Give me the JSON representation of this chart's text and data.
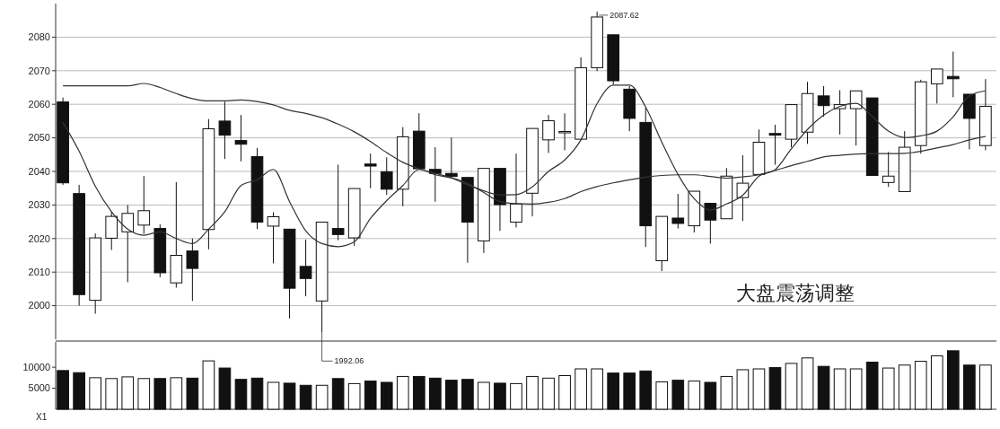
{
  "chart_data": [
    {
      "type": "candlestick",
      "categories": [
        null,
        null,
        null,
        null,
        null,
        null,
        null,
        null,
        null,
        null,
        null,
        null,
        null,
        null,
        null,
        null,
        null,
        null,
        null,
        null,
        null,
        null,
        null,
        null,
        null,
        null,
        null,
        null,
        null,
        null,
        null,
        null,
        null,
        null,
        null,
        null,
        null,
        null,
        null,
        null,
        null,
        null,
        null,
        null,
        null,
        null,
        null,
        null,
        null,
        null,
        null,
        null,
        null,
        null,
        null,
        null,
        null,
        null
      ],
      "ohlc": [
        [
          2060.7,
          2062,
          2036,
          2036.6
        ],
        [
          2033.4,
          2036,
          2000,
          2003.3
        ],
        [
          2001.6,
          2021.5,
          1997.6,
          2020.2
        ],
        [
          2020.1,
          2028,
          2016.6,
          2026.6
        ],
        [
          2022,
          2030,
          2007,
          2027.5
        ],
        [
          2024,
          2038.6,
          2021.4,
          2028.3
        ],
        [
          2023,
          2024.2,
          2008.5,
          2009.8
        ],
        [
          2006.8,
          2036.8,
          2005.4,
          2015
        ],
        [
          2016.3,
          2020,
          2001.4,
          2011.1
        ],
        [
          2022.7,
          2055.6,
          2016.8,
          2052.7
        ],
        [
          2055,
          2060.8,
          2043.7,
          2050.8
        ],
        [
          2049.2,
          2056.8,
          2043,
          2048.1
        ],
        [
          2044.4,
          2047,
          2022.8,
          2024.9
        ],
        [
          2023.7,
          2027.8,
          2012.6,
          2026.5
        ],
        [
          2022.8,
          2022.8,
          1996.2,
          2005.2
        ],
        [
          2011.7,
          2019.7,
          2002.8,
          2008.1
        ],
        [
          2001.4,
          2024.9,
          1992.06,
          2024.9
        ],
        [
          2023,
          2042,
          2019.5,
          2021.2
        ],
        [
          2020.2,
          2034.9,
          2017.8,
          2034.9
        ],
        [
          2042.2,
          2045.3,
          2035,
          2041.6
        ],
        [
          2039.9,
          2044.2,
          2033,
          2034.7
        ],
        [
          2034.7,
          2053.2,
          2029.6,
          2050.3
        ],
        [
          2052,
          2057.3,
          2040.8,
          2040.8
        ],
        [
          2040.6,
          2047.2,
          2031,
          2039.4
        ],
        [
          2039.4,
          2050.1,
          2038.5,
          2038.5
        ],
        [
          2038.2,
          2038.2,
          2012.8,
          2024.9
        ],
        [
          2019.3,
          2040.9,
          2015.7,
          2040.9
        ],
        [
          2040.9,
          2040.9,
          2022.3,
          2030.1
        ],
        [
          2024.9,
          2045.3,
          2023.3,
          2030.3
        ],
        [
          2033.5,
          2052.8,
          2026.6,
          2052.8
        ],
        [
          2049.4,
          2056.8,
          2045.5,
          2055.1
        ],
        [
          2051.7,
          2057.3,
          2046.3,
          2051.9
        ],
        [
          2049.6,
          2074,
          2049.6,
          2070.9
        ],
        [
          2070.9,
          2087.62,
          2069.9,
          2086
        ],
        [
          2080.7,
          2080.7,
          2065.9,
          2067
        ],
        [
          2064.5,
          2065.4,
          2052,
          2055.8
        ],
        [
          2054.6,
          2059,
          2017.5,
          2023.8
        ],
        [
          2013.4,
          2026.6,
          2010.3,
          2026.6
        ],
        [
          2026.1,
          2033.3,
          2023,
          2024.5
        ],
        [
          2023.8,
          2034.1,
          2021.8,
          2034.1
        ],
        [
          2030.5,
          2030.5,
          2018.5,
          2025.5
        ],
        [
          2025.9,
          2041,
          2025.9,
          2038.6
        ],
        [
          2032.2,
          2044.8,
          2025.2,
          2036.5
        ],
        [
          2039.1,
          2052.5,
          2039.1,
          2048.7
        ],
        [
          2051.3,
          2053.9,
          2042,
          2050.8
        ],
        [
          2049.6,
          2059.9,
          2047.2,
          2059.9
        ],
        [
          2051.7,
          2066.7,
          2048.2,
          2063.2
        ],
        [
          2062.5,
          2065.4,
          2056.3,
          2059.6
        ],
        [
          2058.7,
          2064.2,
          2051,
          2059.9
        ],
        [
          2058.7,
          2064,
          2047.7,
          2064
        ],
        [
          2061.9,
          2061.9,
          2038.8,
          2038.8
        ],
        [
          2036.7,
          2045.8,
          2035.4,
          2038.6
        ],
        [
          2034,
          2052,
          2034,
          2047.2
        ],
        [
          2047.7,
          2067.3,
          2045.3,
          2066.7
        ],
        [
          2066.1,
          2070.5,
          2060.2,
          2070.5
        ],
        [
          2068.3,
          2075.7,
          2062.1,
          2067.6
        ],
        [
          2063,
          2063,
          2046.6,
          2055.8
        ],
        [
          2047.7,
          2067.5,
          2046.3,
          2059.4
        ]
      ],
      "series": [
        {
          "type": "line",
          "color": "#333333",
          "values": [
            2054.6,
            2046,
            2035.6,
            2028,
            2022.8,
            2021,
            2022,
            2020,
            2018.5,
            2022.8,
            2028,
            2035.8,
            2037.5,
            2040.6,
            2031,
            2022.3,
            2018.5,
            2017.6,
            2019,
            2026,
            2031.3,
            2035.8,
            2040.6,
            2039,
            2038,
            2036,
            2034.2,
            2033,
            2033.1,
            2035.4,
            2040,
            2043.4,
            2049.4,
            2060.2,
            2065.7,
            2065.7,
            2059.2,
            2048.7,
            2039.1,
            2031.9,
            2028.5,
            2030.3,
            2032.9,
            2038.6,
            2040.5,
            2046.7,
            2052.5,
            2056.8,
            2059.4,
            2060.3,
            2056.3,
            2052,
            2050.1,
            2050.6,
            2052,
            2056.3,
            2062.5,
            2064
          ]
        },
        {
          "type": "line",
          "color": "#333333",
          "values": [
            2065.5,
            2065.5,
            2065.5,
            2065.5,
            2065.5,
            2066.2,
            2065,
            2063.2,
            2061.7,
            2061,
            2061,
            2061.3,
            2060.8,
            2059.8,
            2058.2,
            2057.3,
            2056,
            2054.1,
            2051.8,
            2048.9,
            2045.6,
            2042.7,
            2040.8,
            2039.4,
            2038.2,
            2036.4,
            2033.7,
            2031,
            2030.4,
            2030.3,
            2030.8,
            2031.9,
            2034,
            2035.5,
            2036.6,
            2037.5,
            2038.3,
            2038.8,
            2039,
            2039,
            2038.5,
            2038,
            2038.4,
            2039,
            2040.3,
            2041.7,
            2043,
            2044.3,
            2044.8,
            2045.2,
            2045.3,
            2045.3,
            2045.4,
            2046,
            2047,
            2048,
            2049.4,
            2050.4
          ]
        }
      ],
      "ylim": [
        1990,
        2090
      ],
      "yticks": [
        2000,
        2010,
        2020,
        2030,
        2040,
        2050,
        2060,
        2070,
        2080
      ],
      "grid": "y",
      "annotations": [
        "2087.62",
        "1992.06",
        "大盘震荡调整"
      ]
    },
    {
      "type": "bar",
      "categories": [
        null,
        null,
        null,
        null,
        null,
        null,
        null,
        null,
        null,
        null,
        null,
        null,
        null,
        null,
        null,
        null,
        null,
        null,
        null,
        null,
        null,
        null,
        null,
        null,
        null,
        null,
        null,
        null,
        null,
        null,
        null,
        null,
        null,
        null,
        null,
        null,
        null,
        null,
        null,
        null,
        null,
        null,
        null,
        null,
        null,
        null,
        null,
        null,
        null,
        null,
        null,
        null,
        null,
        null,
        null,
        null,
        null,
        null
      ],
      "values": [
        9200,
        8700,
        7500,
        7300,
        7700,
        7300,
        7300,
        7500,
        7400,
        11500,
        9800,
        7100,
        7400,
        6400,
        6200,
        5700,
        5700,
        7300,
        6100,
        6700,
        6400,
        7800,
        7800,
        7400,
        6900,
        7100,
        6400,
        6200,
        6100,
        7800,
        7400,
        8000,
        9600,
        9600,
        8600,
        8600,
        9100,
        6500,
        6900,
        6700,
        6400,
        7800,
        9400,
        9600,
        9900,
        10900,
        12200,
        10200,
        9600,
        9600,
        11200,
        9800,
        10500,
        11400,
        12700,
        13900,
        10500,
        10500
      ],
      "colors": [
        "#111111",
        "#111111",
        "#ffffff",
        "#ffffff",
        "#ffffff",
        "#ffffff",
        "#111111",
        "#ffffff",
        "#111111",
        "#ffffff",
        "#111111",
        "#111111",
        "#111111",
        "#ffffff",
        "#111111",
        "#111111",
        "#ffffff",
        "#111111",
        "#ffffff",
        "#111111",
        "#111111",
        "#ffffff",
        "#111111",
        "#111111",
        "#111111",
        "#111111",
        "#ffffff",
        "#111111",
        "#ffffff",
        "#ffffff",
        "#ffffff",
        "#ffffff",
        "#ffffff",
        "#ffffff",
        "#111111",
        "#111111",
        "#111111",
        "#ffffff",
        "#111111",
        "#ffffff",
        "#111111",
        "#ffffff",
        "#ffffff",
        "#ffffff",
        "#111111",
        "#ffffff",
        "#ffffff",
        "#111111",
        "#ffffff",
        "#ffffff",
        "#111111",
        "#ffffff",
        "#ffffff",
        "#ffffff",
        "#ffffff",
        "#111111",
        "#111111",
        "#ffffff"
      ],
      "ylim": [
        0,
        16000
      ],
      "yticks": [
        5000,
        10000
      ],
      "annotations": [
        "X1"
      ]
    }
  ]
}
